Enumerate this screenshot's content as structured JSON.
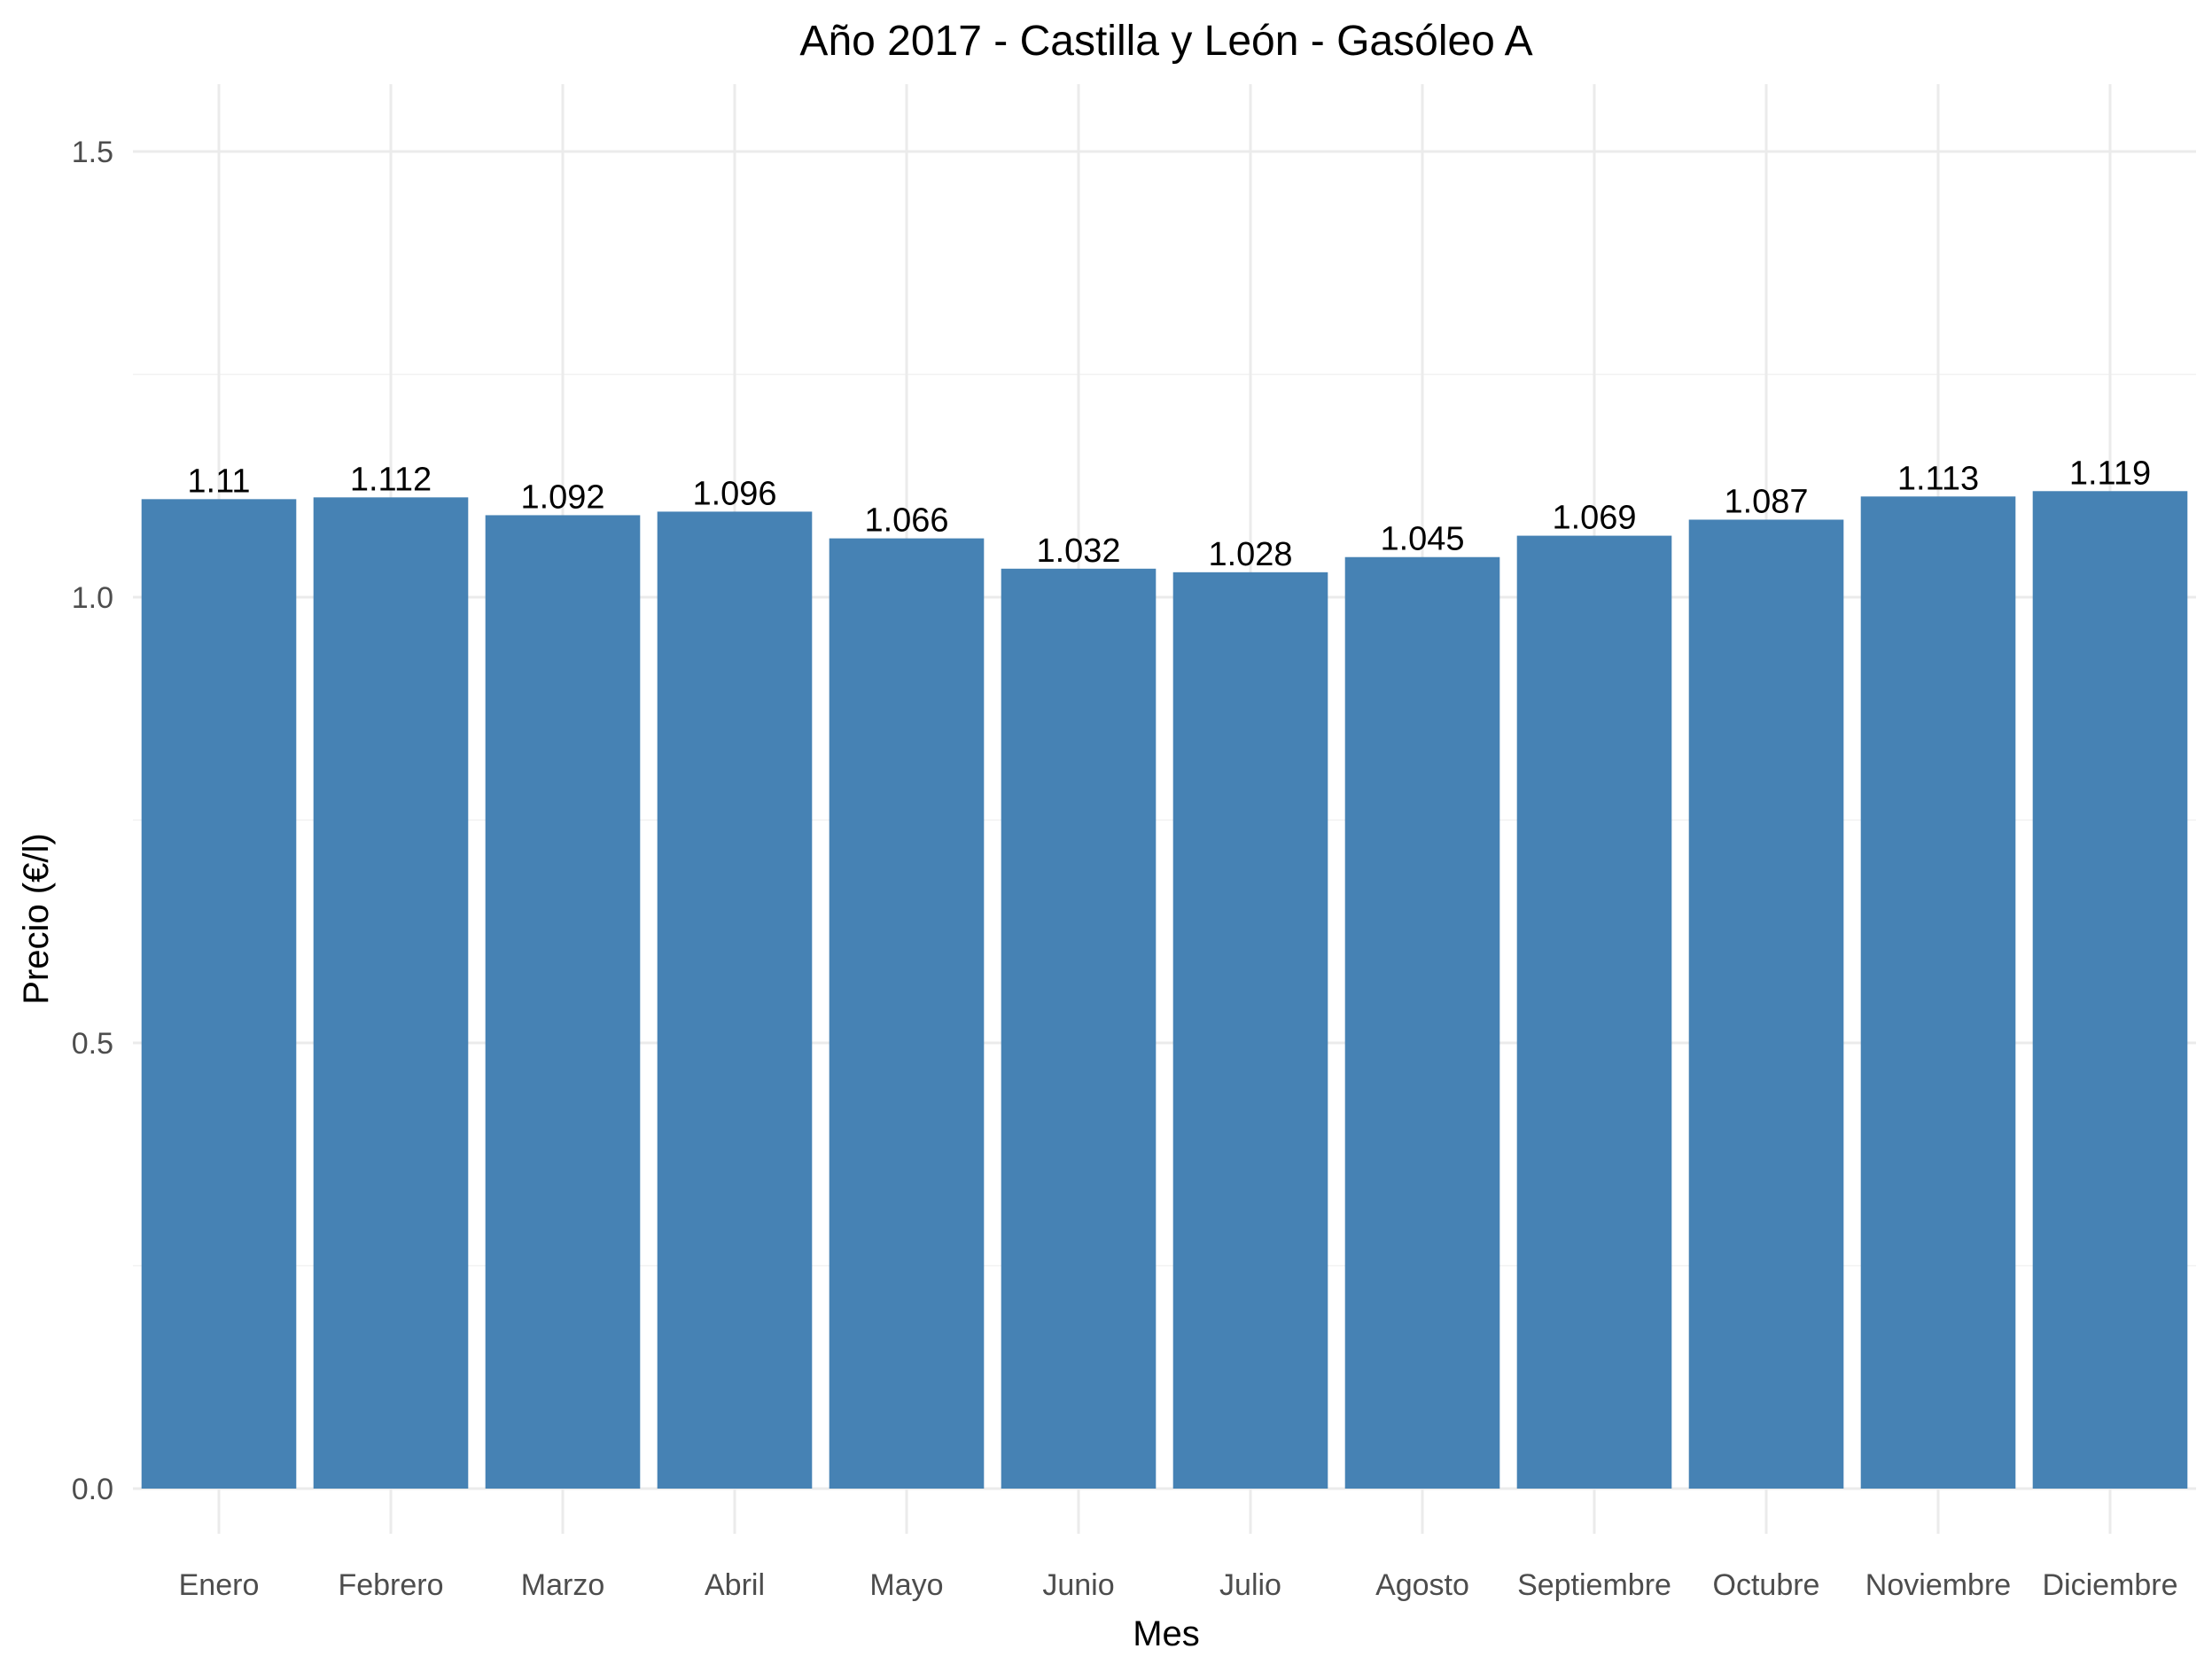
{
  "chart_data": {
    "type": "bar",
    "title": "Año 2017 - Castilla y León - Gasóleo A",
    "xlabel": "Mes",
    "ylabel": "Precio (€/l)",
    "categories": [
      "Enero",
      "Febrero",
      "Marzo",
      "Abril",
      "Mayo",
      "Junio",
      "Julio",
      "Agosto",
      "Septiembre",
      "Octubre",
      "Noviembre",
      "Diciembre"
    ],
    "values": [
      1.11,
      1.112,
      1.092,
      1.096,
      1.066,
      1.032,
      1.028,
      1.045,
      1.069,
      1.087,
      1.113,
      1.119
    ],
    "value_labels": [
      "1.11",
      "1.112",
      "1.092",
      "1.096",
      "1.066",
      "1.032",
      "1.028",
      "1.045",
      "1.069",
      "1.087",
      "1.113",
      "1.119"
    ],
    "ylim": [
      0,
      1.575
    ],
    "yticks": [
      0,
      0.5,
      1.0,
      1.5
    ],
    "ytick_labels": [
      "0.0",
      "0.5",
      "1.0",
      "1.5"
    ],
    "grid": true,
    "bar_color": "#4682b4",
    "legend": "none"
  }
}
